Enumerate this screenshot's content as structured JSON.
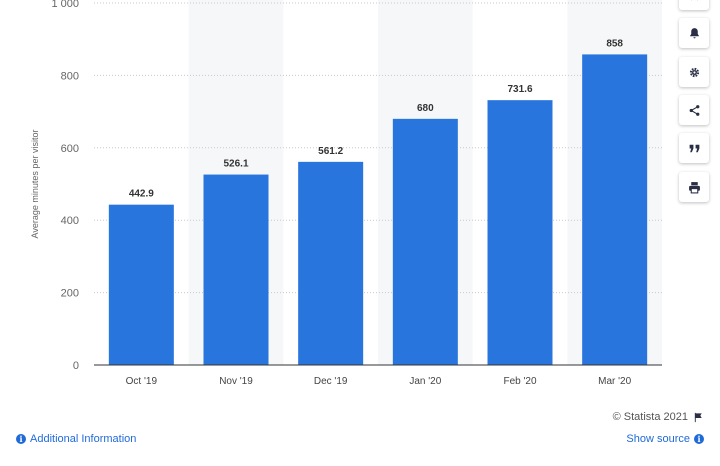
{
  "chart_data": {
    "type": "bar",
    "categories": [
      "Oct '19",
      "Nov '19",
      "Dec '19",
      "Jan '20",
      "Feb '20",
      "Mar '20"
    ],
    "values": [
      442.9,
      526.1,
      561.2,
      680,
      731.6,
      858
    ],
    "value_labels": [
      "442.9",
      "526.1",
      "561.2",
      "680",
      "731.6",
      "858"
    ],
    "ylabel": "Average minutes per visitor",
    "yticks": [
      0,
      200,
      400,
      600,
      800,
      1000
    ],
    "ytick_labels": [
      "0",
      "200",
      "400",
      "600",
      "800",
      "1 000"
    ],
    "ylim": [
      0,
      1000
    ],
    "grid": true,
    "alternating_column_bands": true,
    "bar_color": "#2876dd",
    "band_color": "#f6f7f9"
  },
  "toolbar": {
    "buttons": [
      {
        "name": "star-icon"
      },
      {
        "name": "bell-icon"
      },
      {
        "name": "gear-icon"
      },
      {
        "name": "share-icon"
      },
      {
        "name": "quote-icon"
      },
      {
        "name": "print-icon"
      }
    ]
  },
  "footer": {
    "credit": "© Statista 2021",
    "additional_info": "Additional Information",
    "show_source": "Show source"
  }
}
